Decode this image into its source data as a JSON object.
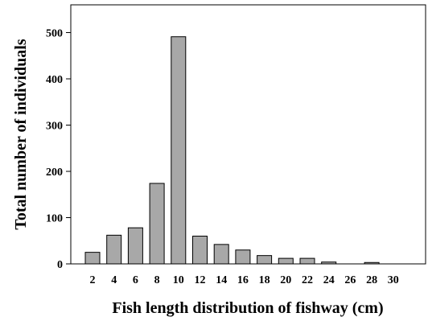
{
  "chart_data": {
    "type": "bar",
    "title": "",
    "xlabel": "Fish length distribution of fishway (cm)",
    "ylabel": "Total number of individuals",
    "categories": [
      "2",
      "4",
      "6",
      "8",
      "10",
      "12",
      "14",
      "16",
      "18",
      "20",
      "22",
      "24",
      "26",
      "28",
      "30"
    ],
    "values": [
      25,
      62,
      78,
      174,
      491,
      60,
      42,
      30,
      18,
      12,
      12,
      4,
      0,
      3,
      0
    ],
    "ylim": [
      0,
      560
    ],
    "yticks": [
      0,
      100,
      200,
      300,
      400,
      500
    ],
    "grid": false,
    "legend": "none",
    "bar_color": "#a8a8a8"
  }
}
